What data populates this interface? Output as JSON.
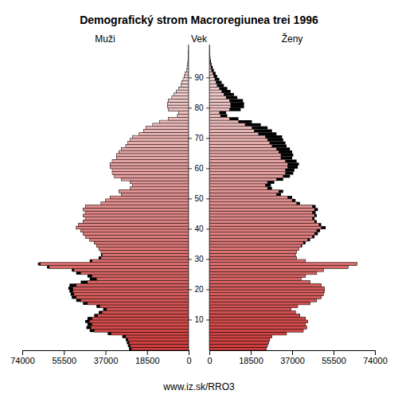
{
  "chart_data": {
    "type": "population_pyramid",
    "title": "Demografický strom Macroregiunea trei 1996",
    "y_label": "Vek",
    "footer": "www.iz.sk/RRO3",
    "orientation": "horizontal",
    "categories": [
      0,
      1,
      2,
      3,
      4,
      5,
      6,
      7,
      8,
      9,
      10,
      11,
      12,
      13,
      14,
      15,
      16,
      17,
      18,
      19,
      20,
      21,
      22,
      23,
      24,
      25,
      26,
      27,
      28,
      29,
      30,
      31,
      32,
      33,
      34,
      35,
      36,
      37,
      38,
      39,
      40,
      41,
      42,
      43,
      44,
      45,
      46,
      47,
      48,
      49,
      50,
      51,
      52,
      53,
      54,
      55,
      56,
      57,
      58,
      59,
      60,
      61,
      62,
      63,
      64,
      65,
      66,
      67,
      68,
      69,
      70,
      71,
      72,
      73,
      74,
      75,
      76,
      77,
      78,
      79,
      80,
      81,
      82,
      83,
      84,
      85,
      86,
      87,
      88,
      89,
      90,
      91,
      92,
      93,
      94,
      95,
      96,
      97,
      98,
      99,
      100
    ],
    "series": [
      {
        "name": "Muži",
        "color": "#cc3c3c",
        "values": [
          26500,
          27000,
          27500,
          28000,
          29500,
          36000,
          44000,
          45500,
          45000,
          46000,
          45000,
          42000,
          40000,
          38000,
          41000,
          47000,
          50000,
          52000,
          52500,
          53000,
          53500,
          53000,
          48000,
          44000,
          45000,
          50000,
          52000,
          63000,
          67000,
          44000,
          40000,
          39000,
          39000,
          40000,
          41000,
          42000,
          44000,
          46000,
          47000,
          48000,
          50000,
          49000,
          47000,
          46000,
          47000,
          46000,
          47000,
          46000,
          39000,
          37000,
          35000,
          30000,
          31000,
          26000,
          25000,
          26000,
          30000,
          33000,
          34000,
          34000,
          35000,
          35000,
          34000,
          32000,
          32000,
          31000,
          30000,
          28000,
          27000,
          26000,
          25000,
          22000,
          20000,
          19000,
          16000,
          13000,
          9000,
          5000,
          4500,
          9000,
          9500,
          9500,
          9000,
          7500,
          6500,
          5500,
          4500,
          3500,
          3000,
          2500,
          2000,
          1500,
          1000,
          700,
          500,
          350,
          250,
          150,
          100,
          60,
          40
        ]
      },
      {
        "name": "Ženy",
        "color": "#cc3c3c",
        "values": [
          25500,
          26000,
          26500,
          27000,
          28000,
          34500,
          42000,
          43500,
          43000,
          44000,
          43000,
          40500,
          38500,
          36500,
          39500,
          45000,
          48000,
          50000,
          51000,
          51500,
          51500,
          50000,
          45000,
          41000,
          43000,
          48000,
          51000,
          62000,
          66000,
          43000,
          39000,
          38500,
          39000,
          40000,
          41500,
          43000,
          45000,
          47000,
          48500,
          49500,
          52000,
          50000,
          48000,
          47000,
          48000,
          47500,
          48500,
          47500,
          40500,
          38500,
          37000,
          32000,
          33000,
          28000,
          27500,
          29000,
          33000,
          36000,
          37500,
          38000,
          39500,
          40000,
          39000,
          37000,
          37500,
          37000,
          36000,
          34500,
          34000,
          33000,
          32500,
          30000,
          28000,
          26000,
          23000,
          19000,
          13000,
          8000,
          7500,
          14000,
          15500,
          15500,
          15000,
          12500,
          11000,
          9500,
          8000,
          6500,
          5500,
          4500,
          3500,
          2800,
          2000,
          1500,
          1000,
          700,
          500,
          300,
          200,
          120,
          80
        ]
      }
    ],
    "xlim": [
      0,
      74000
    ],
    "xticks": [
      0,
      18500,
      37000,
      55500,
      74000
    ],
    "ylim": [
      0,
      101
    ],
    "yticks": [
      10,
      20,
      30,
      40,
      50,
      60,
      70,
      80,
      90
    ]
  }
}
